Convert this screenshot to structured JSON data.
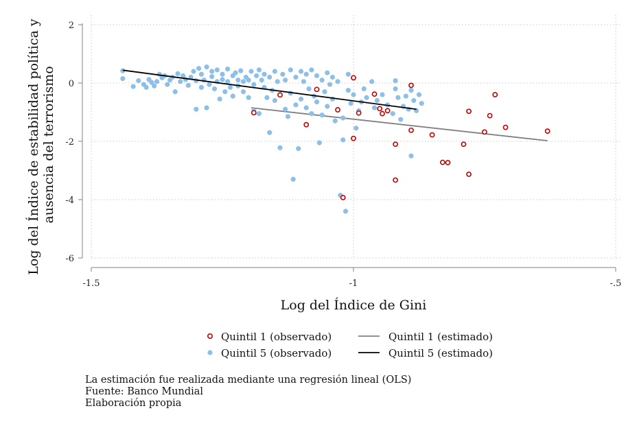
{
  "chart_data": {
    "type": "scatter",
    "xlabel": "Log del Índice de Gini",
    "ylabel_lines": [
      "Log del Índice de estabilidad política y",
      "ausencia del terrorismo"
    ],
    "xlim": [
      -1.5,
      -0.5
    ],
    "ylim": [
      -6,
      2
    ],
    "x_ticks": [
      -1.5,
      -1,
      -0.5
    ],
    "x_tick_labels": [
      "-1.5",
      "-1",
      "-.5"
    ],
    "y_ticks": [
      -6,
      -4,
      -2,
      0,
      2
    ],
    "y_tick_labels": [
      "-6",
      "-4",
      "-2",
      "0",
      "2"
    ],
    "grid": true,
    "legend_position": "bottom",
    "colors": {
      "q1_points": "#c00000",
      "q5_points": "#8cc0e8",
      "q1_line": "#808080",
      "q5_line": "#000000",
      "grid": "#c8c8c8"
    },
    "series": [
      {
        "name": "Quintil 1 (observado)",
        "kind": "points",
        "points": [
          [
            -1.19,
            -1.02
          ],
          [
            -1.14,
            -0.41
          ],
          [
            -1.09,
            -1.43
          ],
          [
            -1.07,
            -0.22
          ],
          [
            -1.03,
            -0.92
          ],
          [
            -1.02,
            -3.93
          ],
          [
            -1.0,
            0.18
          ],
          [
            -0.99,
            -1.03
          ],
          [
            -1.0,
            -1.9
          ],
          [
            -0.96,
            -0.38
          ],
          [
            -0.95,
            -0.88
          ],
          [
            -0.945,
            -1.05
          ],
          [
            -0.935,
            -0.95
          ],
          [
            -0.92,
            -2.1
          ],
          [
            -0.92,
            -3.33
          ],
          [
            -0.89,
            -1.62
          ],
          [
            -0.89,
            -0.08
          ],
          [
            -0.85,
            -1.78
          ],
          [
            -0.83,
            -2.72
          ],
          [
            -0.82,
            -2.73
          ],
          [
            -0.79,
            -2.1
          ],
          [
            -0.78,
            -0.97
          ],
          [
            -0.78,
            -3.13
          ],
          [
            -0.75,
            -1.68
          ],
          [
            -0.74,
            -1.12
          ],
          [
            -0.73,
            -0.4
          ],
          [
            -0.71,
            -1.52
          ],
          [
            -0.63,
            -1.65
          ]
        ]
      },
      {
        "name": "Quintil 5 (observado)",
        "kind": "points",
        "points": [
          [
            -1.44,
            0.15
          ],
          [
            -1.44,
            0.42
          ],
          [
            -1.42,
            -0.12
          ],
          [
            -1.41,
            0.08
          ],
          [
            -1.4,
            -0.05
          ],
          [
            -1.395,
            -0.15
          ],
          [
            -1.39,
            0.12
          ],
          [
            -1.385,
            0.02
          ],
          [
            -1.38,
            -0.1
          ],
          [
            -1.375,
            0.05
          ],
          [
            -1.37,
            0.3
          ],
          [
            -1.365,
            0.18
          ],
          [
            -1.36,
            0.25
          ],
          [
            -1.355,
            -0.05
          ],
          [
            -1.35,
            0.1
          ],
          [
            -1.345,
            0.2
          ],
          [
            -1.34,
            -0.3
          ],
          [
            -1.335,
            0.32
          ],
          [
            -1.33,
            0.05
          ],
          [
            -1.325,
            0.25
          ],
          [
            -1.32,
            0.12
          ],
          [
            -1.315,
            -0.08
          ],
          [
            -1.31,
            0.2
          ],
          [
            -1.305,
            0.4
          ],
          [
            -1.3,
            0.08
          ],
          [
            -1.3,
            -0.9
          ],
          [
            -1.295,
            0.5
          ],
          [
            -1.29,
            -0.15
          ],
          [
            -1.29,
            0.3
          ],
          [
            -1.285,
            0.1
          ],
          [
            -1.28,
            0.55
          ],
          [
            -1.28,
            -0.85
          ],
          [
            -1.275,
            -0.05
          ],
          [
            -1.27,
            0.4
          ],
          [
            -1.27,
            0.22
          ],
          [
            -1.265,
            -0.2
          ],
          [
            -1.26,
            0.45
          ],
          [
            -1.26,
            0.05
          ],
          [
            -1.255,
            -0.55
          ],
          [
            -1.25,
            0.3
          ],
          [
            -1.25,
            0.12
          ],
          [
            -1.245,
            -0.3
          ],
          [
            -1.24,
            0.48
          ],
          [
            -1.24,
            0.05
          ],
          [
            -1.235,
            -0.15
          ],
          [
            -1.23,
            0.25
          ],
          [
            -1.23,
            -0.45
          ],
          [
            -1.225,
            0.35
          ],
          [
            -1.22,
            0.1
          ],
          [
            -1.22,
            -0.1
          ],
          [
            -1.215,
            0.42
          ],
          [
            -1.21,
            0.05
          ],
          [
            -1.21,
            -0.3
          ],
          [
            -1.205,
            0.2
          ],
          [
            -1.2,
            0.1
          ],
          [
            -1.2,
            -0.5
          ],
          [
            -1.195,
            0.4
          ],
          [
            -1.19,
            -0.05
          ],
          [
            -1.19,
            -0.95
          ],
          [
            -1.185,
            0.25
          ],
          [
            -1.18,
            0.45
          ],
          [
            -1.18,
            -1.05
          ],
          [
            -1.175,
            0.1
          ],
          [
            -1.17,
            -0.15
          ],
          [
            -1.17,
            0.3
          ],
          [
            -1.165,
            -0.5
          ],
          [
            -1.16,
            0.2
          ],
          [
            -1.16,
            -1.7
          ],
          [
            -1.155,
            -0.25
          ],
          [
            -1.15,
            0.4
          ],
          [
            -1.15,
            -0.6
          ],
          [
            -1.145,
            0.05
          ],
          [
            -1.14,
            -2.22
          ],
          [
            -1.14,
            -0.4
          ],
          [
            -1.135,
            0.3
          ],
          [
            -1.13,
            -0.9
          ],
          [
            -1.13,
            0.1
          ],
          [
            -1.125,
            -1.15
          ],
          [
            -1.12,
            0.45
          ],
          [
            -1.12,
            -0.35
          ],
          [
            -1.115,
            -3.3
          ],
          [
            -1.11,
            0.2
          ],
          [
            -1.11,
            -0.75
          ],
          [
            -1.105,
            -2.25
          ],
          [
            -1.1,
            0.4
          ],
          [
            -1.1,
            -0.55
          ],
          [
            -1.095,
            0.05
          ],
          [
            -1.09,
            -0.85
          ],
          [
            -1.09,
            0.3
          ],
          [
            -1.085,
            -0.2
          ],
          [
            -1.08,
            0.45
          ],
          [
            -1.08,
            -1.05
          ],
          [
            -1.075,
            -0.45
          ],
          [
            -1.07,
            0.25
          ],
          [
            -1.07,
            -0.65
          ],
          [
            -1.065,
            -2.05
          ],
          [
            -1.06,
            0.1
          ],
          [
            -1.06,
            -1.1
          ],
          [
            -1.055,
            -0.3
          ],
          [
            -1.05,
            0.35
          ],
          [
            -1.05,
            -0.8
          ],
          [
            -1.045,
            -0.05
          ],
          [
            -1.04,
            -0.55
          ],
          [
            -1.04,
            0.2
          ],
          [
            -1.035,
            -1.3
          ],
          [
            -1.03,
            -0.9
          ],
          [
            -1.03,
            0.05
          ],
          [
            -1.025,
            -3.85
          ],
          [
            -1.02,
            -1.2
          ],
          [
            -1.02,
            -1.95
          ],
          [
            -1.015,
            -4.4
          ],
          [
            -1.01,
            -0.25
          ],
          [
            -1.01,
            0.3
          ],
          [
            -1.005,
            -0.7
          ],
          [
            -1.0,
            -0.4
          ],
          [
            -0.995,
            -1.55
          ],
          [
            -0.99,
            -0.95
          ],
          [
            -0.985,
            -0.65
          ],
          [
            -0.98,
            -0.2
          ],
          [
            -0.975,
            -0.5
          ],
          [
            -0.965,
            0.05
          ],
          [
            -0.96,
            -0.85
          ],
          [
            -0.955,
            -0.6
          ],
          [
            -0.945,
            -0.4
          ],
          [
            -0.935,
            -0.75
          ],
          [
            -0.925,
            -1.05
          ],
          [
            -0.92,
            -0.2
          ],
          [
            -0.915,
            -0.5
          ],
          [
            -0.91,
            -1.25
          ],
          [
            -0.905,
            -0.8
          ],
          [
            -0.9,
            -0.45
          ],
          [
            -0.895,
            -0.9
          ],
          [
            -0.89,
            -0.25
          ],
          [
            -0.89,
            -2.5
          ],
          [
            -0.885,
            -0.6
          ],
          [
            -0.88,
            -0.95
          ],
          [
            -0.875,
            -0.4
          ],
          [
            -0.87,
            -0.7
          ],
          [
            -0.92,
            0.08
          ]
        ]
      },
      {
        "name": "Quintil 1 (estimado)",
        "kind": "line",
        "points": [
          [
            -1.195,
            -0.85
          ],
          [
            -0.63,
            -1.98
          ]
        ]
      },
      {
        "name": "Quintil 5 (estimado)",
        "kind": "line",
        "points": [
          [
            -1.44,
            0.44
          ],
          [
            -0.88,
            -0.9
          ]
        ]
      }
    ]
  },
  "notes": [
    "La estimación fue realizada mediante una regresión lineal (OLS)",
    "Fuente: Banco Mundial",
    "Elaboración propia"
  ]
}
